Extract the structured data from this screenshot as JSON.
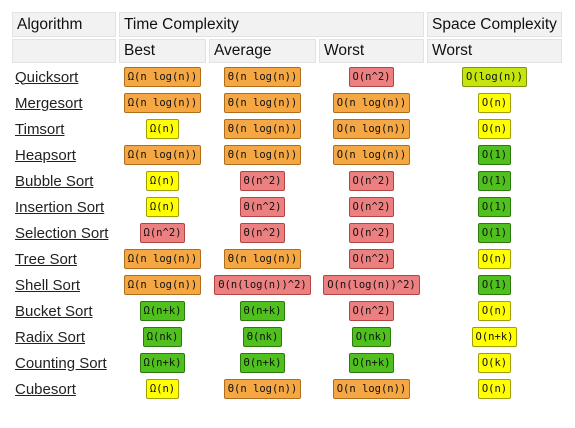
{
  "colors": {
    "bad": "#ec8080",
    "fair": "#f4a743",
    "good": "#ffff00",
    "good_alt": "#c6e40e",
    "excellent": "#50c01e"
  },
  "header": {
    "algorithm": "Algorithm",
    "time_complexity": "Time Complexity",
    "space_complexity": "Space Complexity",
    "best": "Best",
    "average": "Average",
    "worst": "Worst",
    "space_worst": "Worst"
  },
  "rows": [
    {
      "name": "Quicksort",
      "best": {
        "v": "Ω(n log(n))",
        "c": "mid"
      },
      "avg": {
        "v": "Θ(n log(n))",
        "c": "mid"
      },
      "worst": {
        "v": "O(n^2)",
        "c": "bad"
      },
      "space": {
        "v": "O(log(n))",
        "c": "lime"
      }
    },
    {
      "name": "Mergesort",
      "best": {
        "v": "Ω(n log(n))",
        "c": "mid"
      },
      "avg": {
        "v": "Θ(n log(n))",
        "c": "mid"
      },
      "worst": {
        "v": "O(n log(n))",
        "c": "mid"
      },
      "space": {
        "v": "O(n)",
        "c": "yellow"
      }
    },
    {
      "name": "Timsort",
      "best": {
        "v": "Ω(n)",
        "c": "yellow"
      },
      "avg": {
        "v": "Θ(n log(n))",
        "c": "mid"
      },
      "worst": {
        "v": "O(n log(n))",
        "c": "mid"
      },
      "space": {
        "v": "O(n)",
        "c": "yellow"
      }
    },
    {
      "name": "Heapsort",
      "best": {
        "v": "Ω(n log(n))",
        "c": "mid"
      },
      "avg": {
        "v": "Θ(n log(n))",
        "c": "mid"
      },
      "worst": {
        "v": "O(n log(n))",
        "c": "mid"
      },
      "space": {
        "v": "O(1)",
        "c": "best"
      }
    },
    {
      "name": "Bubble Sort",
      "best": {
        "v": "Ω(n)",
        "c": "yellow"
      },
      "avg": {
        "v": "Θ(n^2)",
        "c": "bad"
      },
      "worst": {
        "v": "O(n^2)",
        "c": "bad"
      },
      "space": {
        "v": "O(1)",
        "c": "best"
      }
    },
    {
      "name": "Insertion Sort",
      "best": {
        "v": "Ω(n)",
        "c": "yellow"
      },
      "avg": {
        "v": "Θ(n^2)",
        "c": "bad"
      },
      "worst": {
        "v": "O(n^2)",
        "c": "bad"
      },
      "space": {
        "v": "O(1)",
        "c": "best"
      }
    },
    {
      "name": "Selection Sort",
      "best": {
        "v": "Ω(n^2)",
        "c": "bad"
      },
      "avg": {
        "v": "Θ(n^2)",
        "c": "bad"
      },
      "worst": {
        "v": "O(n^2)",
        "c": "bad"
      },
      "space": {
        "v": "O(1)",
        "c": "best"
      }
    },
    {
      "name": "Tree Sort",
      "best": {
        "v": "Ω(n log(n))",
        "c": "mid"
      },
      "avg": {
        "v": "Θ(n log(n))",
        "c": "mid"
      },
      "worst": {
        "v": "O(n^2)",
        "c": "bad"
      },
      "space": {
        "v": "O(n)",
        "c": "yellow"
      }
    },
    {
      "name": "Shell Sort",
      "best": {
        "v": "Ω(n log(n))",
        "c": "mid"
      },
      "avg": {
        "v": "Θ(n(log(n))^2)",
        "c": "bad"
      },
      "worst": {
        "v": "O(n(log(n))^2)",
        "c": "bad"
      },
      "space": {
        "v": "O(1)",
        "c": "best"
      }
    },
    {
      "name": "Bucket Sort",
      "best": {
        "v": "Ω(n+k)",
        "c": "best"
      },
      "avg": {
        "v": "Θ(n+k)",
        "c": "best"
      },
      "worst": {
        "v": "O(n^2)",
        "c": "bad"
      },
      "space": {
        "v": "O(n)",
        "c": "yellow"
      }
    },
    {
      "name": "Radix Sort",
      "best": {
        "v": "Ω(nk)",
        "c": "best"
      },
      "avg": {
        "v": "Θ(nk)",
        "c": "best"
      },
      "worst": {
        "v": "O(nk)",
        "c": "best"
      },
      "space": {
        "v": "O(n+k)",
        "c": "yellow"
      }
    },
    {
      "name": "Counting Sort",
      "best": {
        "v": "Ω(n+k)",
        "c": "best"
      },
      "avg": {
        "v": "Θ(n+k)",
        "c": "best"
      },
      "worst": {
        "v": "O(n+k)",
        "c": "best"
      },
      "space": {
        "v": "O(k)",
        "c": "yellow"
      }
    },
    {
      "name": "Cubesort",
      "best": {
        "v": "Ω(n)",
        "c": "yellow"
      },
      "avg": {
        "v": "Θ(n log(n))",
        "c": "mid"
      },
      "worst": {
        "v": "O(n log(n))",
        "c": "mid"
      },
      "space": {
        "v": "O(n)",
        "c": "yellow"
      }
    }
  ]
}
